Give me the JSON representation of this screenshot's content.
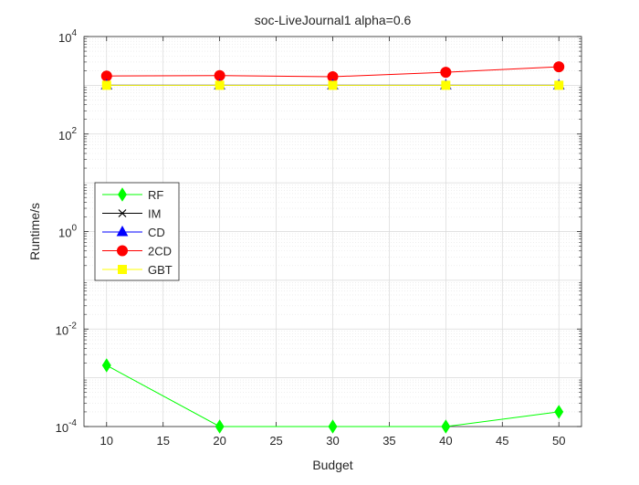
{
  "chart_data": {
    "type": "line",
    "title": "soc-LiveJournal1 alpha=0.6",
    "xlabel": "Budget",
    "ylabel": "Runtime/s",
    "x": [
      10,
      20,
      30,
      40,
      50
    ],
    "xlim": [
      8,
      52
    ],
    "ylim": [
      0.0001,
      10000
    ],
    "yscale": "log",
    "xticks": [
      10,
      15,
      20,
      25,
      30,
      35,
      40,
      45,
      50
    ],
    "yticks": [
      {
        "base": "10",
        "exp": "-4",
        "value": 0.0001
      },
      {
        "base": "10",
        "exp": "-2",
        "value": 0.01
      },
      {
        "base": "10",
        "exp": "0",
        "value": 1
      },
      {
        "base": "10",
        "exp": "2",
        "value": 100
      },
      {
        "base": "10",
        "exp": "4",
        "value": 10000
      }
    ],
    "grid": true,
    "minor_grid": true,
    "legend_position": "middle-left",
    "series": [
      {
        "name": "RF",
        "color": "#00ff00",
        "marker": "diamond",
        "values": [
          0.0018,
          0.0001,
          0.0001,
          0.0001,
          0.0002
        ]
      },
      {
        "name": "IM",
        "color": "#000000",
        "marker": "x",
        "values": [
          1000,
          1000,
          1000,
          1000,
          1000
        ]
      },
      {
        "name": "CD",
        "color": "#0000ff",
        "marker": "triangle",
        "values": [
          1000,
          1000,
          1000,
          1000,
          1000
        ]
      },
      {
        "name": "2CD",
        "color": "#ff0000",
        "marker": "circle",
        "values": [
          1550,
          1580,
          1500,
          1850,
          2400
        ]
      },
      {
        "name": "GBT",
        "color": "#ffff00",
        "marker": "square",
        "values": [
          1000,
          1000,
          1000,
          1000,
          1000
        ]
      }
    ]
  }
}
